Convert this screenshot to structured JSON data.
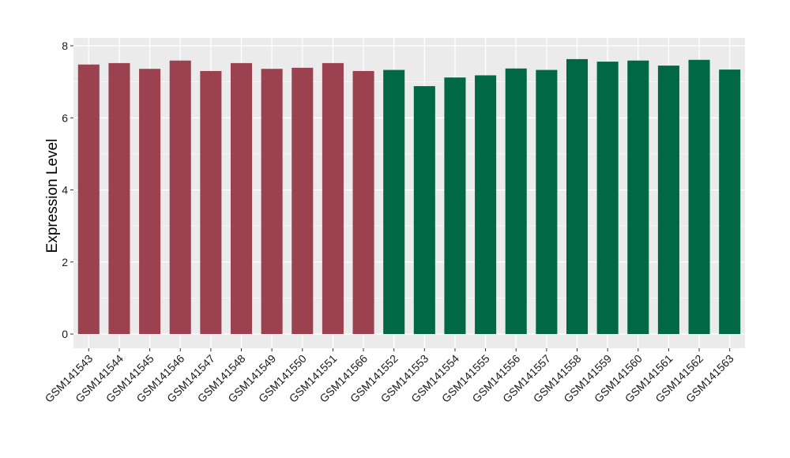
{
  "chart_data": {
    "type": "bar",
    "title": "",
    "xlabel": "",
    "ylabel": "Expression Level",
    "ylim": [
      0,
      8
    ],
    "yticks": [
      0,
      2,
      4,
      6,
      8
    ],
    "grid": true,
    "legend": "none",
    "categories": [
      "GSM141543",
      "GSM141544",
      "GSM141545",
      "GSM141546",
      "GSM141547",
      "GSM141548",
      "GSM141549",
      "GSM141550",
      "GSM141551",
      "GSM141566",
      "GSM141552",
      "GSM141553",
      "GSM141554",
      "GSM141555",
      "GSM141556",
      "GSM141557",
      "GSM141558",
      "GSM141559",
      "GSM141560",
      "GSM141561",
      "GSM141562",
      "GSM141563"
    ],
    "values": [
      7.48,
      7.52,
      7.36,
      7.59,
      7.3,
      7.52,
      7.36,
      7.39,
      7.52,
      7.3,
      7.33,
      6.88,
      7.12,
      7.18,
      7.37,
      7.33,
      7.63,
      7.56,
      7.59,
      7.45,
      7.61,
      7.34
    ],
    "groups": [
      "red",
      "red",
      "red",
      "red",
      "red",
      "red",
      "red",
      "red",
      "red",
      "red",
      "green",
      "green",
      "green",
      "green",
      "green",
      "green",
      "green",
      "green",
      "green",
      "green",
      "green",
      "green"
    ],
    "colors": {
      "red": "#9b4150",
      "green": "#006845"
    },
    "panel_background": "#ebebeb",
    "grid_color": "#ffffff"
  }
}
